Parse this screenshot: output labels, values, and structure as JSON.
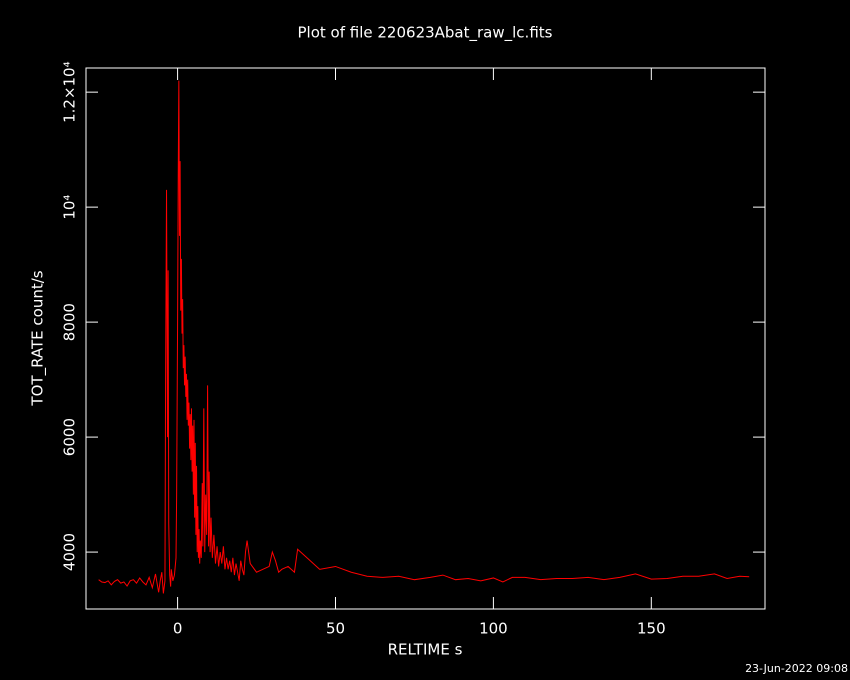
{
  "chart_data": {
    "type": "line",
    "title": "Plot of file 220623Abat_raw_lc.fits",
    "x_label": "RELTIME  s",
    "y_label": "TOT_RATE  count/s",
    "timestamp": "23-Jun-2022 09:08",
    "color": "#ff0000",
    "x": [
      -25,
      -24,
      -23,
      -22,
      -21,
      -20,
      -19,
      -18,
      -17,
      -16,
      -15,
      -14,
      -13,
      -12,
      -11,
      -10,
      -9,
      -8,
      -7,
      -6,
      -5.5,
      -5,
      -4.5,
      -4,
      -3.8,
      -3.5,
      -3.2,
      -3,
      -2.8,
      -2.5,
      -2.2,
      -2,
      -1.5,
      -1,
      -0.5,
      -0.3,
      0,
      0.2,
      0.4,
      0.6,
      0.8,
      1,
      1.2,
      1.4,
      1.6,
      1.8,
      2,
      2.2,
      2.4,
      2.6,
      2.8,
      3,
      3.2,
      3.4,
      3.6,
      3.8,
      4,
      4.2,
      4.4,
      4.6,
      4.8,
      5,
      5.2,
      5.4,
      5.6,
      5.8,
      6,
      6.2,
      6.4,
      6.6,
      6.8,
      7,
      7.2,
      7.5,
      7.8,
      8,
      8.3,
      8.6,
      8.9,
      9.2,
      9.5,
      9.8,
      10,
      10.3,
      10.6,
      11,
      11.5,
      12,
      12.5,
      13,
      13.5,
      14,
      14.5,
      15,
      15.5,
      16,
      16.5,
      17,
      17.5,
      18,
      18.5,
      19,
      19.5,
      20,
      20.5,
      21,
      21.5,
      22,
      23,
      25,
      27,
      29,
      30,
      31,
      32,
      33,
      35,
      36,
      37,
      38,
      40,
      45,
      50,
      55,
      60,
      65,
      70,
      75,
      80,
      84,
      88,
      92,
      96,
      100,
      103,
      106,
      110,
      115,
      120,
      125,
      130,
      135,
      140,
      145,
      150,
      155,
      160,
      165,
      170,
      174,
      178,
      181
    ],
    "values": [
      3520,
      3480,
      3470,
      3500,
      3430,
      3490,
      3520,
      3460,
      3480,
      3410,
      3500,
      3520,
      3460,
      3550,
      3480,
      3430,
      3560,
      3380,
      3620,
      3300,
      3500,
      3650,
      3280,
      3500,
      7000,
      10300,
      6000,
      8900,
      4500,
      3600,
      3400,
      3700,
      3500,
      3600,
      3900,
      5000,
      8000,
      10500,
      12200,
      9500,
      10800,
      8200,
      9100,
      7800,
      8400,
      7200,
      7600,
      6900,
      7400,
      6700,
      7100,
      6300,
      7000,
      6200,
      6600,
      5800,
      6400,
      5600,
      6500,
      5400,
      6200,
      5000,
      6300,
      4600,
      5900,
      4300,
      5500,
      4000,
      4800,
      3900,
      4400,
      3800,
      4200,
      3900,
      5200,
      4100,
      6500,
      4000,
      5000,
      4300,
      6900,
      4100,
      5400,
      4000,
      4600,
      3900,
      4300,
      3800,
      4100,
      3750,
      4000,
      3800,
      4100,
      3700,
      3900,
      3700,
      3850,
      3650,
      3900,
      3600,
      3800,
      3650,
      3500,
      3850,
      3700,
      3600,
      4000,
      4200,
      3800,
      3650,
      3700,
      3750,
      4000,
      3850,
      3650,
      3700,
      3750,
      3700,
      3650,
      4050,
      3950,
      3700,
      3750,
      3650,
      3580,
      3560,
      3580,
      3520,
      3560,
      3600,
      3520,
      3540,
      3500,
      3550,
      3480,
      3560,
      3560,
      3520,
      3540,
      3540,
      3560,
      3520,
      3560,
      3620,
      3530,
      3540,
      3580,
      3580,
      3620,
      3540,
      3580,
      3570
    ],
    "xlim": [
      -29,
      186
    ],
    "ylim": [
      3010,
      12420
    ],
    "xticks": [
      0,
      50,
      100,
      150
    ],
    "yticks": [
      4000,
      6000,
      8000,
      {
        "value": 10000,
        "label": "10⁴"
      },
      {
        "value": 12000,
        "label": "1.2×10⁴"
      }
    ]
  }
}
